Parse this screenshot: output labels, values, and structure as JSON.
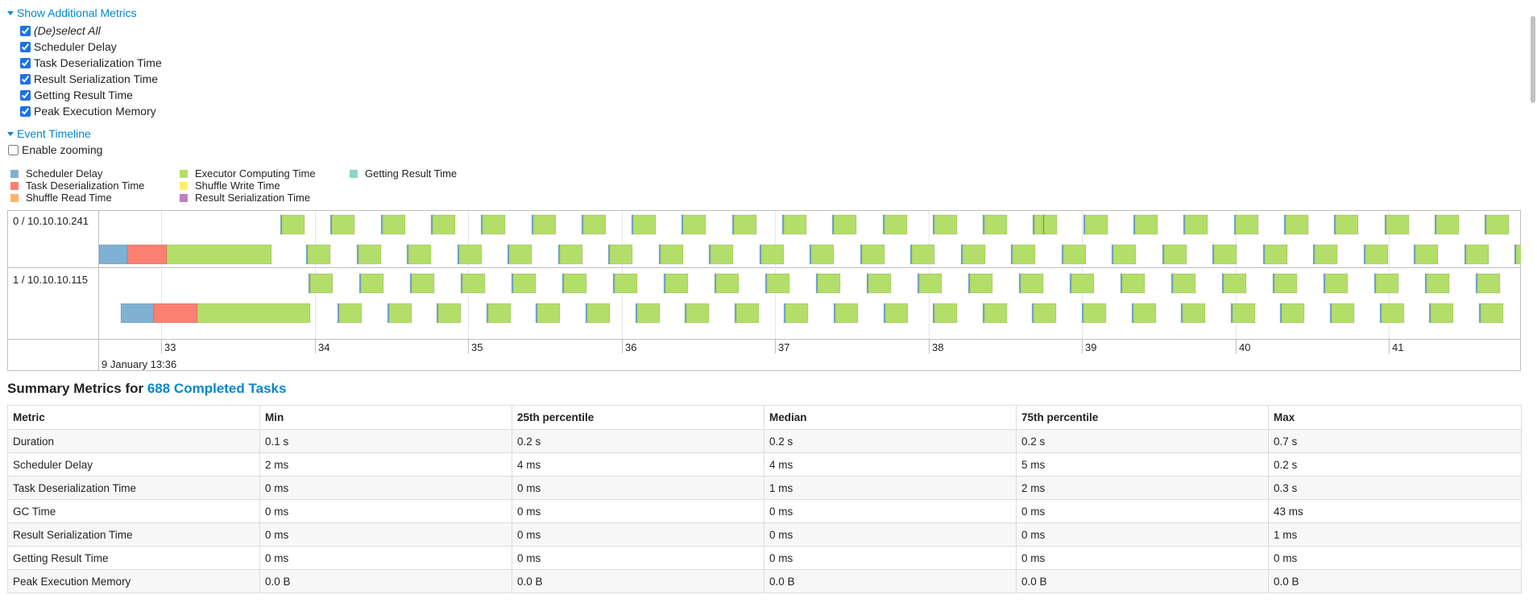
{
  "additional_metrics": {
    "toggle_label": "Show Additional Metrics",
    "items": [
      {
        "label": "(De)select All",
        "checked": true
      },
      {
        "label": "Scheduler Delay",
        "checked": true
      },
      {
        "label": "Task Deserialization Time",
        "checked": true
      },
      {
        "label": "Result Serialization Time",
        "checked": true
      },
      {
        "label": "Getting Result Time",
        "checked": true
      },
      {
        "label": "Peak Execution Memory",
        "checked": true
      }
    ]
  },
  "event_timeline": {
    "toggle_label": "Event Timeline",
    "zoom_label": "Enable zooming",
    "zoom_checked": false,
    "legend": [
      {
        "label": "Scheduler Delay",
        "color": "#80b1d3"
      },
      {
        "label": "Task Deserialization Time",
        "color": "#fb8072"
      },
      {
        "label": "Shuffle Read Time",
        "color": "#fdb462"
      },
      {
        "label": "Executor Computing Time",
        "color": "#b3de69"
      },
      {
        "label": "Shuffle Write Time",
        "color": "#ffed6f"
      },
      {
        "label": "Result Serialization Time",
        "color": "#bc80bd"
      },
      {
        "label": "Getting Result Time",
        "color": "#8dd3c7"
      }
    ],
    "executors": [
      {
        "label": "0 / 10.10.10.241"
      },
      {
        "label": "1 / 10.10.10.115"
      }
    ],
    "axis_ticks": [
      "33",
      "34",
      "35",
      "36",
      "37",
      "38",
      "39",
      "40",
      "41"
    ],
    "axis_date": "9 January 13:36"
  },
  "summary": {
    "title_prefix": "Summary Metrics for ",
    "title_link": "688 Completed Tasks",
    "columns": [
      "Metric",
      "Min",
      "25th percentile",
      "Median",
      "75th percentile",
      "Max"
    ],
    "rows": [
      [
        "Duration",
        "0.1 s",
        "0.2 s",
        "0.2 s",
        "0.2 s",
        "0.7 s"
      ],
      [
        "Scheduler Delay",
        "2 ms",
        "4 ms",
        "4 ms",
        "5 ms",
        "0.2 s"
      ],
      [
        "Task Deserialization Time",
        "0 ms",
        "0 ms",
        "1 ms",
        "2 ms",
        "0.3 s"
      ],
      [
        "GC Time",
        "0 ms",
        "0 ms",
        "0 ms",
        "0 ms",
        "43 ms"
      ],
      [
        "Result Serialization Time",
        "0 ms",
        "0 ms",
        "0 ms",
        "0 ms",
        "1 ms"
      ],
      [
        "Getting Result Time",
        "0 ms",
        "0 ms",
        "0 ms",
        "0 ms",
        "0 ms"
      ],
      [
        "Peak Execution Memory",
        "0.0 B",
        "0.0 B",
        "0.0 B",
        "0.0 B",
        "0.0 B"
      ]
    ]
  }
}
